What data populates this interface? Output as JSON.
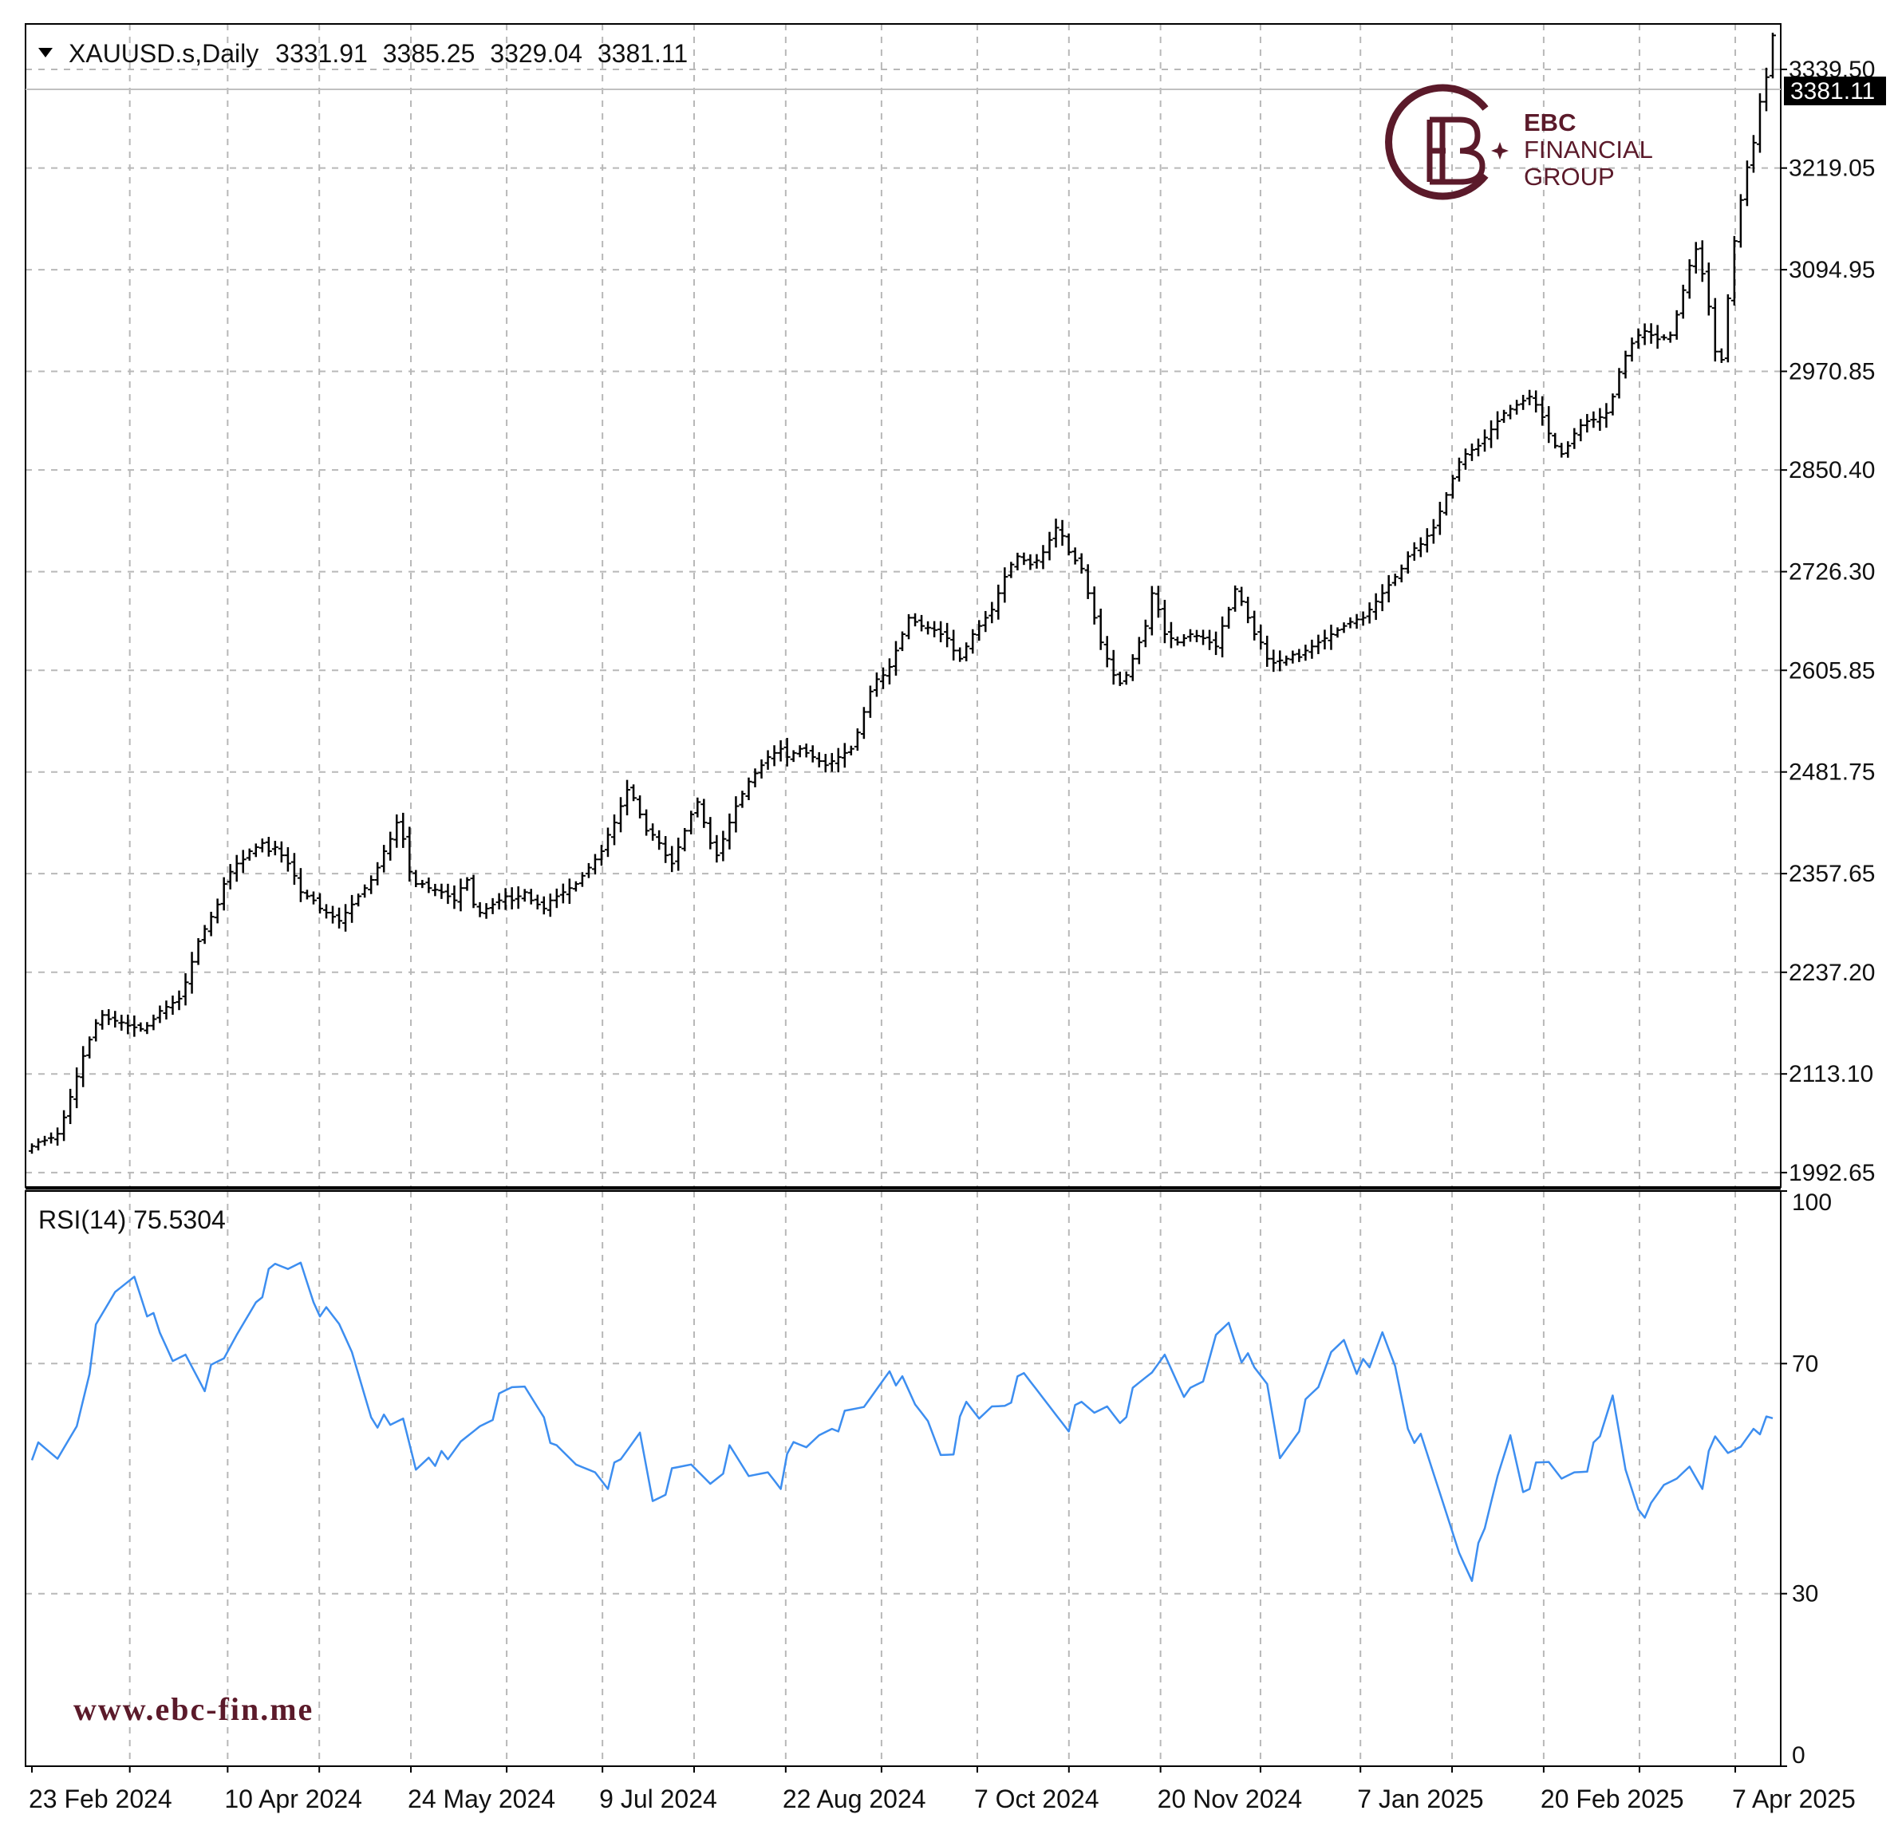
{
  "header": {
    "symbol": "XAUUSD.s,Daily",
    "open": "3331.91",
    "high": "3385.25",
    "low": "3329.04",
    "close": "3381.11"
  },
  "rsi_header": "RSI(14) 75.5304",
  "current_price_label": "3381.11",
  "logo": {
    "line1": "EBC",
    "line2": "FINANCIAL",
    "line3": "GROUP"
  },
  "website": "www.ebc-fin.me",
  "colors": {
    "candles": "#000000",
    "rsi_line": "#3d8ef0",
    "grid": "#b8b8b8",
    "brand": "#5b1a2a"
  },
  "chart_data": [
    {
      "type": "bar",
      "title": "XAUUSD.s,Daily",
      "price_axis_labels": [
        "3339.50",
        "3219.05",
        "3094.95",
        "2970.85",
        "2850.40",
        "2726.30",
        "2605.85",
        "2481.75",
        "2357.65",
        "2237.20",
        "2113.10",
        "1992.65"
      ],
      "time_axis_labels": [
        "23 Feb 2024",
        "10 Apr 2024",
        "24 May 2024",
        "9 Jul 2024",
        "22 Aug 2024",
        "7 Oct 2024",
        "20 Nov 2024",
        "7 Jan 2025",
        "20 Feb 2025",
        "7 Apr 2025"
      ],
      "ylim": [
        1975,
        3395
      ],
      "grid": true,
      "closes": [
        2025,
        2030,
        2032,
        2035,
        2040,
        2060,
        2085,
        2110,
        2135,
        2155,
        2175,
        2185,
        2180,
        2178,
        2176,
        2172,
        2170,
        2168,
        2172,
        2180,
        2190,
        2195,
        2200,
        2205,
        2225,
        2250,
        2275,
        2290,
        2305,
        2320,
        2345,
        2360,
        2370,
        2375,
        2385,
        2390,
        2395,
        2385,
        2390,
        2380,
        2370,
        2355,
        2335,
        2330,
        2325,
        2315,
        2310,
        2305,
        2300,
        2310,
        2320,
        2330,
        2340,
        2350,
        2365,
        2385,
        2400,
        2420,
        2400,
        2360,
        2345,
        2345,
        2340,
        2338,
        2335,
        2330,
        2325,
        2340,
        2350,
        2320,
        2310,
        2315,
        2320,
        2325,
        2330,
        2325,
        2330,
        2335,
        2325,
        2320,
        2315,
        2325,
        2330,
        2335,
        2340,
        2345,
        2355,
        2365,
        2375,
        2385,
        2405,
        2420,
        2440,
        2460,
        2450,
        2430,
        2410,
        2405,
        2395,
        2380,
        2370,
        2390,
        2410,
        2430,
        2445,
        2420,
        2395,
        2380,
        2400,
        2420,
        2440,
        2455,
        2470,
        2480,
        2490,
        2500,
        2505,
        2510,
        2500,
        2505,
        2510,
        2505,
        2500,
        2495,
        2490,
        2495,
        2500,
        2505,
        2510,
        2530,
        2555,
        2580,
        2595,
        2600,
        2610,
        2630,
        2650,
        2670,
        2665,
        2660,
        2658,
        2655,
        2650,
        2645,
        2630,
        2620,
        2635,
        2650,
        2660,
        2670,
        2680,
        2700,
        2720,
        2735,
        2745,
        2740,
        2735,
        2740,
        2750,
        2765,
        2780,
        2770,
        2750,
        2740,
        2730,
        2700,
        2670,
        2640,
        2620,
        2600,
        2590,
        2600,
        2620,
        2640,
        2660,
        2700,
        2680,
        2650,
        2645,
        2640,
        2645,
        2650,
        2648,
        2645,
        2640,
        2635,
        2660,
        2680,
        2705,
        2690,
        2670,
        2650,
        2640,
        2620,
        2615,
        2618,
        2620,
        2625,
        2622,
        2630,
        2635,
        2640,
        2645,
        2650,
        2655,
        2660,
        2665,
        2668,
        2670,
        2680,
        2690,
        2700,
        2710,
        2720,
        2730,
        2745,
        2755,
        2760,
        2770,
        2780,
        2800,
        2820,
        2840,
        2860,
        2870,
        2875,
        2880,
        2890,
        2900,
        2910,
        2920,
        2925,
        2930,
        2935,
        2940,
        2930,
        2915,
        2895,
        2880,
        2870,
        2880,
        2895,
        2905,
        2910,
        2912,
        2915,
        2920,
        2940,
        2970,
        2990,
        3005,
        3015,
        3020,
        3015,
        3010,
        3012,
        3015,
        3040,
        3070,
        3100,
        3120,
        3090,
        3050,
        2995,
        2985,
        3060,
        3130,
        3180,
        3220,
        3250,
        3300,
        3330,
        3381
      ]
    },
    {
      "type": "line",
      "title": "RSI(14) 75.5304",
      "ylim": [
        0,
        100
      ],
      "y_axis_labels": [
        "100",
        "70",
        "30",
        "0"
      ],
      "last_value": 75.5304,
      "anchors": [
        [
          0,
          55
        ],
        [
          4,
          53
        ],
        [
          7,
          60
        ],
        [
          10,
          75
        ],
        [
          13,
          82
        ],
        [
          16,
          86
        ],
        [
          18,
          80
        ],
        [
          20,
          74
        ],
        [
          22,
          70
        ],
        [
          24,
          72
        ],
        [
          27,
          67
        ],
        [
          30,
          70
        ],
        [
          32,
          75
        ],
        [
          35,
          82
        ],
        [
          38,
          86
        ],
        [
          40,
          86
        ],
        [
          42,
          88
        ],
        [
          44,
          82
        ],
        [
          46,
          78
        ],
        [
          48,
          76
        ],
        [
          50,
          72
        ],
        [
          53,
          62
        ],
        [
          56,
          58
        ],
        [
          58,
          60
        ],
        [
          60,
          52
        ],
        [
          62,
          55
        ],
        [
          65,
          52
        ],
        [
          67,
          56
        ],
        [
          70,
          60
        ],
        [
          73,
          63
        ],
        [
          75,
          65
        ],
        [
          77,
          66
        ],
        [
          80,
          62
        ],
        [
          82,
          54
        ],
        [
          85,
          52
        ],
        [
          88,
          52
        ],
        [
          90,
          50
        ],
        [
          92,
          52
        ],
        [
          95,
          58
        ],
        [
          97,
          47
        ],
        [
          100,
          50
        ],
        [
          103,
          52
        ],
        [
          106,
          50
        ],
        [
          109,
          54
        ],
        [
          112,
          50
        ],
        [
          115,
          52
        ],
        [
          117,
          50
        ],
        [
          119,
          55
        ],
        [
          121,
          55
        ],
        [
          123,
          58
        ],
        [
          125,
          60
        ],
        [
          127,
          60
        ],
        [
          130,
          62
        ],
        [
          132,
          66
        ],
        [
          134,
          70
        ],
        [
          136,
          66
        ],
        [
          138,
          62
        ],
        [
          140,
          60
        ],
        [
          142,
          55
        ],
        [
          144,
          56
        ],
        [
          146,
          62
        ],
        [
          148,
          60
        ],
        [
          150,
          63
        ],
        [
          152,
          64
        ],
        [
          155,
          67
        ],
        [
          157,
          65
        ],
        [
          160,
          62
        ],
        [
          162,
          60
        ],
        [
          164,
          62
        ],
        [
          166,
          61
        ],
        [
          168,
          63
        ],
        [
          170,
          61
        ],
        [
          172,
          64
        ],
        [
          175,
          68
        ],
        [
          177,
          72
        ],
        [
          179,
          68
        ],
        [
          181,
          64
        ],
        [
          183,
          66
        ],
        [
          185,
          75
        ],
        [
          187,
          78
        ],
        [
          189,
          72
        ],
        [
          191,
          68
        ],
        [
          193,
          66
        ],
        [
          195,
          54
        ],
        [
          197,
          58
        ],
        [
          199,
          62
        ],
        [
          201,
          65
        ],
        [
          203,
          72
        ],
        [
          205,
          75
        ],
        [
          207,
          70
        ],
        [
          209,
          68
        ],
        [
          211,
          75
        ],
        [
          213,
          70
        ],
        [
          215,
          60
        ],
        [
          217,
          56
        ],
        [
          219,
          50
        ],
        [
          221,
          44
        ],
        [
          223,
          38
        ],
        [
          225,
          34
        ],
        [
          227,
          40
        ],
        [
          229,
          50
        ],
        [
          231,
          58
        ],
        [
          233,
          49
        ],
        [
          235,
          51
        ],
        [
          237,
          52
        ],
        [
          239,
          50
        ],
        [
          241,
          52
        ],
        [
          243,
          53
        ],
        [
          245,
          56
        ],
        [
          247,
          64
        ],
        [
          249,
          52
        ],
        [
          251,
          46
        ],
        [
          253,
          44
        ],
        [
          255,
          48
        ],
        [
          257,
          50
        ],
        [
          259,
          53
        ],
        [
          261,
          50
        ],
        [
          263,
          56
        ],
        [
          265,
          54
        ],
        [
          267,
          56
        ],
        [
          269,
          60
        ],
        [
          271,
          59
        ],
        [
          273,
          62
        ],
        [
          275,
          65
        ],
        [
          277,
          67
        ],
        [
          279,
          68
        ],
        [
          281,
          70
        ],
        [
          283,
          66
        ],
        [
          285,
          70
        ],
        [
          287,
          72
        ],
        [
          289,
          76
        ],
        [
          291,
          78
        ],
        [
          293,
          79
        ],
        [
          295,
          80
        ],
        [
          297,
          76
        ],
        [
          299,
          64
        ],
        [
          301,
          72
        ],
        [
          303,
          71
        ],
        [
          305,
          70
        ],
        [
          307,
          66
        ],
        [
          309,
          54
        ],
        [
          311,
          58
        ],
        [
          313,
          62
        ],
        [
          315,
          56
        ],
        [
          317,
          60
        ],
        [
          319,
          68
        ],
        [
          321,
          72
        ],
        [
          323,
          76
        ],
        [
          325,
          71
        ],
        [
          327,
          68
        ],
        [
          329,
          72
        ],
        [
          331,
          78
        ],
        [
          333,
          82
        ],
        [
          335,
          76
        ],
        [
          337,
          66
        ],
        [
          339,
          54
        ],
        [
          341,
          58
        ],
        [
          343,
          64
        ],
        [
          345,
          69
        ],
        [
          347,
          72
        ],
        [
          349,
          75.53
        ]
      ]
    }
  ]
}
